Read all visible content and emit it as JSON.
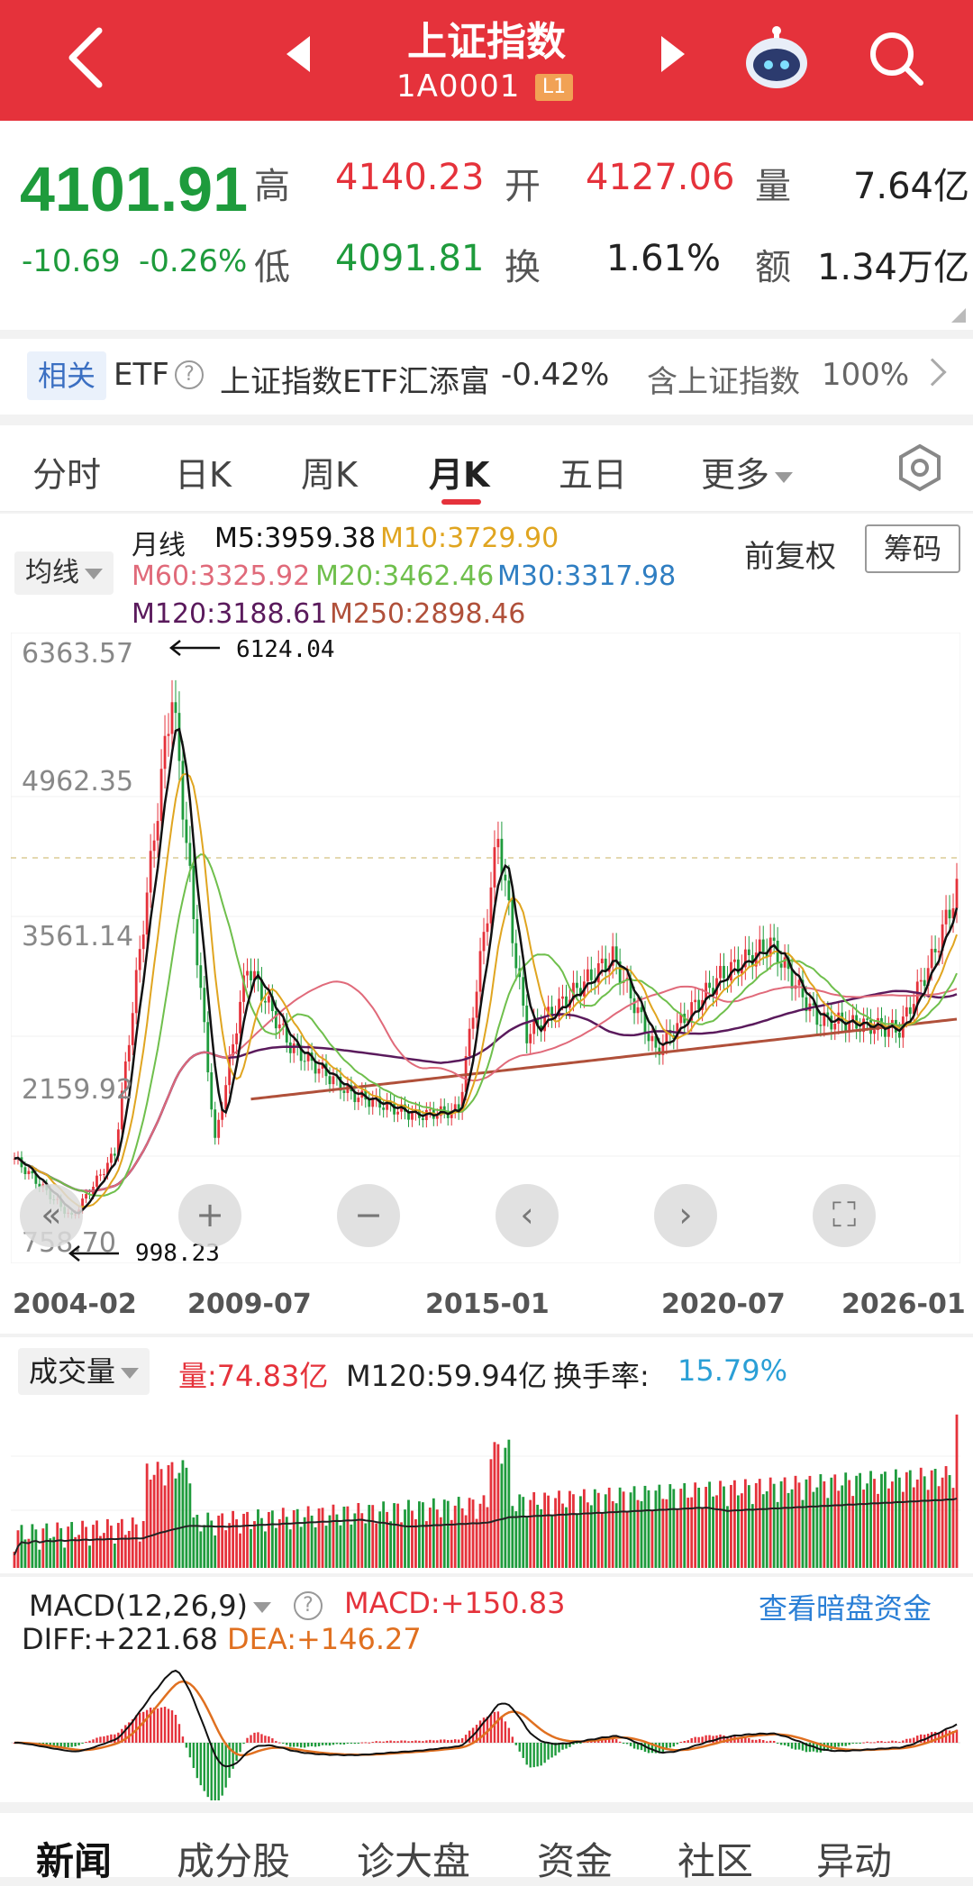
{
  "header": {
    "title": "上证指数",
    "code": "1A0001",
    "level": "L1"
  },
  "quote": {
    "price": "4101.91",
    "change": "-10.69",
    "change_pct": "-0.26%",
    "high_label": "高",
    "high": "4140.23",
    "open_label": "开",
    "open": "4127.06",
    "volume_label": "量",
    "volume": "7.64亿",
    "low_label": "低",
    "low": "4091.81",
    "turnover_label": "换",
    "turnover": "1.61%",
    "amount_label": "额",
    "amount": "1.34万亿"
  },
  "etf": {
    "tag": "相关",
    "etf_label": "ETF",
    "name": "上证指数ETF汇添富",
    "change": "-0.42%",
    "contains": "含上证指数",
    "weight": "100%"
  },
  "tabs": [
    {
      "label": "分时"
    },
    {
      "label": "日K"
    },
    {
      "label": "周K"
    },
    {
      "label": "月K",
      "active": true
    },
    {
      "label": "五日"
    },
    {
      "label": "更多"
    }
  ],
  "main": {
    "ma_select": "均线",
    "period": "月线",
    "fuquan": "前复权",
    "chouma": "筹码",
    "ma": {
      "m5": "M5:3959.38",
      "m10": "M10:3729.90",
      "m60": "M60:3325.92",
      "m20": "M20:3462.46",
      "m30": "M30:3317.98",
      "m120": "M120:3188.61",
      "m250": "M250:2898.46"
    },
    "y_ticks": [
      "6363.57",
      "4962.35",
      "3561.14",
      "2159.92",
      "758.70"
    ],
    "x_ticks": [
      "2004-02",
      "2009-07",
      "2015-01",
      "2020-07",
      "2026-01"
    ],
    "max_annot": "6124.04",
    "min_annot": "998.23"
  },
  "volume": {
    "select": "成交量",
    "vol": "量:74.83亿",
    "m120": "M120:59.94亿",
    "turnover_label": "换手率:",
    "turnover": "15.79%"
  },
  "macd": {
    "select": "MACD(12,26,9)",
    "macd": "MACD:+150.83",
    "diff": "DIFF:+221.68",
    "dea": "DEA:+146.27",
    "dark_link": "查看暗盘资金"
  },
  "bottom_tabs": [
    "新闻",
    "成分股",
    "诊大盘",
    "资金",
    "社区",
    "异动"
  ],
  "colors": {
    "header": "#e5323b",
    "up": "#e5323b",
    "down": "#1e9b3c",
    "m5": "#111111",
    "m10": "#e0a520",
    "m20": "#6fbf4c",
    "m30": "#2f7ec2",
    "m60": "#e06a7a",
    "m120": "#5a1a5c",
    "m250": "#b0503a"
  },
  "chart_data": {
    "type": "candlestick",
    "period": "monthly",
    "ylim": [
      758.7,
      6363.57
    ],
    "x_range": [
      "2004-02",
      "2026-01"
    ],
    "points": [
      {
        "x": "2004-02",
        "close": 1600
      },
      {
        "x": "2005-06",
        "close": 1050
      },
      {
        "x": "2006-06",
        "close": 1650
      },
      {
        "x": "2007-10",
        "close": 5950
      },
      {
        "x": "2008-10",
        "close": 1750
      },
      {
        "x": "2009-07",
        "close": 3400
      },
      {
        "x": "2010-07",
        "close": 2650
      },
      {
        "x": "2011-12",
        "close": 2200
      },
      {
        "x": "2013-06",
        "close": 2000
      },
      {
        "x": "2014-06",
        "close": 2050
      },
      {
        "x": "2015-05",
        "close": 4600
      },
      {
        "x": "2016-01",
        "close": 2750
      },
      {
        "x": "2018-01",
        "close": 3480
      },
      {
        "x": "2019-01",
        "close": 2600
      },
      {
        "x": "2020-07",
        "close": 3300
      },
      {
        "x": "2021-09",
        "close": 3600
      },
      {
        "x": "2022-10",
        "close": 2900
      },
      {
        "x": "2024-09",
        "close": 2800
      },
      {
        "x": "2025-06",
        "close": 3450
      },
      {
        "x": "2026-01",
        "close": 4101.91
      }
    ],
    "ma250": [
      {
        "x": "2009-07",
        "v": 2150
      },
      {
        "x": "2026-01",
        "v": 2898.46
      }
    ],
    "max_marker": {
      "x": "2007-10",
      "v": 6124.04
    },
    "min_marker": {
      "x": "2005-06",
      "v": 998.23
    }
  }
}
